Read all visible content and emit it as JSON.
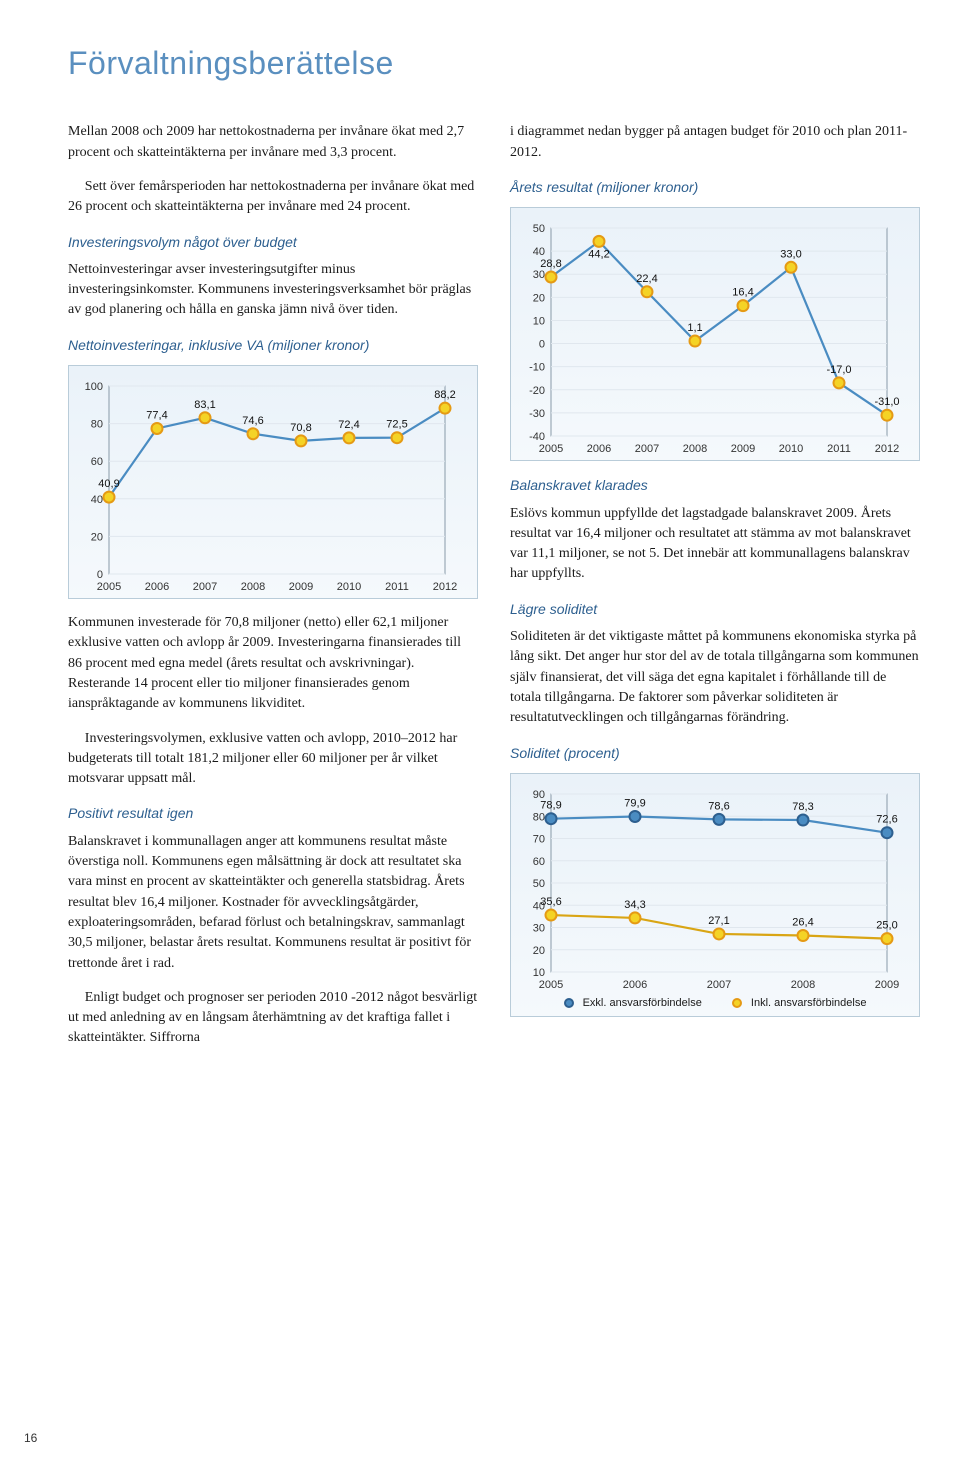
{
  "page_title": "Förvaltningsberättelse",
  "page_number": "16",
  "left": {
    "p1": "Mellan 2008 och 2009 har nettokostnaderna per invånare ökat med 2,7 procent och skatteintäkterna per invånare med 3,3 procent.",
    "p1b": "Sett över femårsperioden har nettokostnaderna per invånare ökat med 26 procent och skatteintäkterna per invånare med 24 procent.",
    "sub1": "Investeringsvolym något över budget",
    "p2": "Nettoinvesteringar avser investeringsutgifter minus investeringsinkomster. Kommunens investeringsverksamhet bör präglas av god planering och hålla en ganska jämn nivå över tiden.",
    "chart1_title": "Nettoinvesteringar, inklusive VA (miljoner kronor)",
    "p3": "Kommunen investerade för 70,8 miljoner (netto) eller 62,1 miljoner exklusive vatten och avlopp år 2009. Investeringarna finansierades till 86 procent med egna medel (årets resultat och avskrivningar). Resterande 14 procent eller tio miljoner finansierades genom ianspråktagande av kommunens likviditet.",
    "p3b": "Investeringsvolymen, exklusive vatten och avlopp, 2010–2012 har budgeterats till totalt 181,2 miljoner eller 60 miljoner per år vilket motsvarar uppsatt mål.",
    "sub2": "Positivt resultat igen",
    "p4": "Balanskravet i kommunallagen anger att kommunens resultat måste överstiga noll. Kommunens egen målsättning är dock att resultatet ska vara minst en procent av skatteintäkter och generella statsbidrag. Årets resultat blev 16,4 miljoner. Kostnader för avvecklingsåtgärder, exploateringsområden, befarad förlust och betalningskrav, sammanlagt 30,5 miljoner, belastar årets resultat. Kommunens resultat är positivt för trettonde året i rad.",
    "p4b": "Enligt budget och prognoser ser perioden 2010 -2012 något besvärligt ut med anledning av en långsam återhämtning av det kraftiga fallet i skatteintäkter. Siffrorna"
  },
  "right": {
    "p1": "i diagrammet nedan bygger på antagen budget för 2010 och plan 2011-2012.",
    "chart2_title": "Årets resultat (miljoner kronor)",
    "sub1": "Balanskravet klarades",
    "p2": "Eslövs kommun uppfyllde det lagstadgade balanskravet 2009. Årets resultat var 16,4 miljoner och resultatet att stämma av mot balanskravet var 11,1 miljoner, se not 5. Det innebär att kommunallagens balanskrav har uppfyllts.",
    "sub2": "Lägre soliditet",
    "p3": "Soliditeten är det viktigaste måttet på kommunens ekonomiska styrka på lång sikt. Det anger hur stor del av de totala tillgångarna som kommunen själv finansierat, det vill säga det egna kapitalet i förhållande till de totala tillgångarna. De faktorer som påverkar soliditeten är resultatutvecklingen och tillgångarnas förändring.",
    "chart3_title": "Soliditet (procent)",
    "legend_a": "Exkl. ansvarsförbindelse",
    "legend_b": "Inkl. ansvarsförbindelse"
  },
  "chart1": {
    "type": "line",
    "categories": [
      "2005",
      "2006",
      "2007",
      "2008",
      "2009",
      "2010",
      "2011",
      "2012"
    ],
    "values": [
      40.9,
      77.4,
      83.1,
      74.6,
      70.8,
      72.4,
      72.5,
      88.2
    ],
    "labels": [
      "40,9",
      "77,4",
      "83,1",
      "74,6",
      "70,8",
      "72,4",
      "72,5",
      "88,2"
    ],
    "ylim": [
      0,
      100
    ],
    "ytick": [
      0,
      20,
      40,
      60,
      80,
      100
    ],
    "line_color": "#4a8cc2",
    "marker_fill": "#f4d326",
    "marker_stroke": "#e59a14",
    "label_above": [
      false,
      true,
      true,
      true,
      true,
      true,
      true,
      true
    ]
  },
  "chart2": {
    "type": "line",
    "categories": [
      "2005",
      "2006",
      "2007",
      "2008",
      "2009",
      "2010",
      "2011",
      "2012"
    ],
    "values": [
      28.8,
      44.2,
      22.4,
      1.1,
      16.4,
      33.0,
      -17.0,
      -31.0
    ],
    "labels": [
      "28,8",
      "44,2",
      "22,4",
      "1,1",
      "16,4",
      "33,0",
      "-17,0",
      "-31,0"
    ],
    "ylim": [
      -40,
      50
    ],
    "ytick": [
      -40,
      -30,
      -20,
      -10,
      0,
      10,
      20,
      30,
      40,
      50
    ],
    "line_color": "#4a8cc2",
    "marker_fill": "#f4d326",
    "marker_stroke": "#e59a14"
  },
  "chart3": {
    "type": "line-2series",
    "categories": [
      "2005",
      "2006",
      "2007",
      "2008",
      "2009"
    ],
    "series_a": {
      "values": [
        78.9,
        79.9,
        78.6,
        78.3,
        72.6
      ],
      "labels": [
        "78,9",
        "79,9",
        "78,6",
        "78,3",
        "72,6"
      ],
      "line_color": "#4a8cc2",
      "marker_fill": "#4a8cc2",
      "marker_stroke": "#2d5f8f"
    },
    "series_b": {
      "values": [
        35.6,
        34.3,
        27.1,
        26.4,
        25.0
      ],
      "labels": [
        "35,6",
        "34,3",
        "27,1",
        "26,4",
        "25,0"
      ],
      "line_color": "#d9a514",
      "marker_fill": "#f4d326",
      "marker_stroke": "#e59a14"
    },
    "ylim": [
      10,
      90
    ],
    "ytick": [
      10,
      20,
      30,
      40,
      50,
      60,
      70,
      80,
      90
    ]
  }
}
